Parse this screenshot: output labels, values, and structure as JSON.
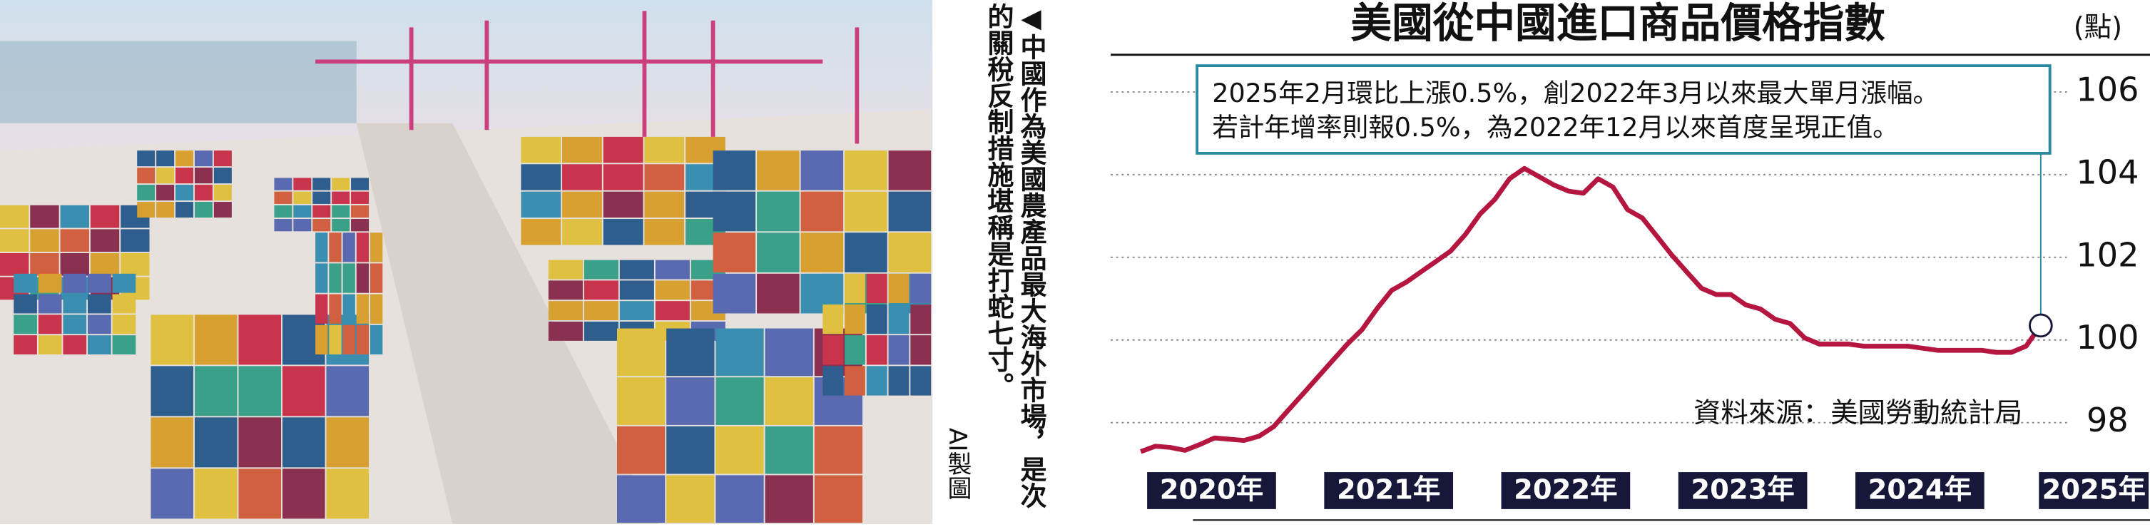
{
  "caption": {
    "text": "◀中國作為美國農產品最大海外市場，是次的關稅反制措施堪稱是打蛇七寸。",
    "credit": "AI製圖"
  },
  "chart_data": {
    "type": "line",
    "title": "美國從中國進口商品價格指數",
    "unit": "(點)",
    "annotation": [
      "2025年2月環比上漲0.5%，創2022年3月以來最大單月漲幅。",
      "若計年增率則報0.5%，為2022年12月以來首度呈現正值。"
    ],
    "source": "資料來源：美國勞動統計局",
    "color": "#b5163f",
    "x": [
      2020,
      2020.083,
      2020.167,
      2020.25,
      2020.333,
      2020.417,
      2020.5,
      2020.583,
      2020.667,
      2020.75,
      2020.833,
      2020.917,
      2021,
      2021.083,
      2021.167,
      2021.25,
      2021.333,
      2021.417,
      2021.5,
      2021.583,
      2021.667,
      2021.75,
      2021.833,
      2021.917,
      2022,
      2022.083,
      2022.167,
      2022.25,
      2022.333,
      2022.417,
      2022.5,
      2022.583,
      2022.667,
      2022.75,
      2022.833,
      2022.917,
      2023,
      2023.083,
      2023.167,
      2023.25,
      2023.333,
      2023.417,
      2023.5,
      2023.583,
      2023.667,
      2023.75,
      2023.833,
      2023.917,
      2024,
      2024.083,
      2024.167,
      2024.25,
      2024.333,
      2024.417,
      2024.5,
      2024.583,
      2024.667,
      2024.75,
      2024.833,
      2024.917,
      2025,
      2025.083
    ],
    "values": [
      97.3,
      97.43,
      97.4,
      97.33,
      97.47,
      97.63,
      97.6,
      97.57,
      97.67,
      97.9,
      98.3,
      98.7,
      99.1,
      99.5,
      99.9,
      100.25,
      100.75,
      101.2,
      101.4,
      101.65,
      101.9,
      102.15,
      102.55,
      103.05,
      103.4,
      103.9,
      104.15,
      103.95,
      103.75,
      103.6,
      103.55,
      103.9,
      103.7,
      103.15,
      102.95,
      102.5,
      102.05,
      101.65,
      101.25,
      101.1,
      101.1,
      100.85,
      100.75,
      100.5,
      100.4,
      100.05,
      99.9,
      99.9,
      99.9,
      99.85,
      99.85,
      99.85,
      99.85,
      99.8,
      99.75,
      99.75,
      99.75,
      99.75,
      99.7,
      99.7,
      99.85,
      100.35
    ],
    "xlim": [
      2019.83,
      2025.7
    ],
    "xticks": [
      {
        "value": 2020.4,
        "label": "2020年"
      },
      {
        "value": 2021.4,
        "label": "2021年"
      },
      {
        "value": 2022.4,
        "label": "2022年"
      },
      {
        "value": 2023.4,
        "label": "2023年"
      },
      {
        "value": 2024.4,
        "label": "2024年"
      },
      {
        "value": 2025.4,
        "label": "2025年"
      }
    ],
    "ylim": [
      97.2,
      106.9
    ],
    "yticks": [
      98,
      100,
      102,
      104,
      106
    ],
    "grid": true
  }
}
